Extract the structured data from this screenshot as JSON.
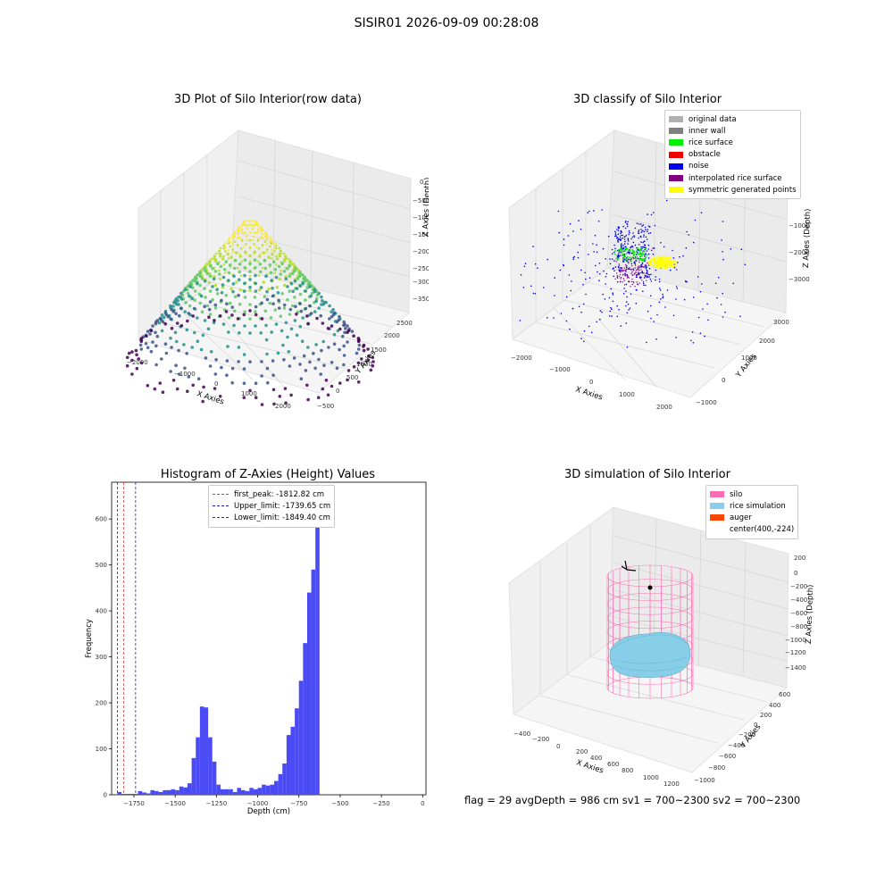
{
  "suptitle": "SISIR01 2026-09-09 00:28:08",
  "footer": "flag = 29  avgDepth = 986 cm  sv1 = 700~2300  sv2 = 700~2300",
  "colors": {
    "hist_bar": "#4b4bf5",
    "first_peak": "#e03030",
    "limit": "#2020d0",
    "original_data": "#b0b0b0",
    "inner_wall": "#808080",
    "rice_surface": "#00ee00",
    "obstacle": "#ee0000",
    "noise": "#0000ee",
    "interpolated_rice_surface": "#800080",
    "symmetric_generated_points": "#ffff00",
    "silo": "#ff6eb4",
    "rice_simulation": "#87cee8",
    "auger": "#ff4500"
  },
  "chart_data": [
    {
      "type": "scatter",
      "title": "3D Plot of Silo Interior(row data)",
      "xlabel": "X Axies",
      "ylabel": "Y Axies",
      "zlabel": "Z Axies (Depth)",
      "xticks": [
        "−2000",
        "−1000",
        "0",
        "1000",
        "2000"
      ],
      "yticks": [
        "−500",
        "0",
        "500",
        "1000",
        "1500",
        "2000",
        "2500"
      ],
      "zticks": [
        "0",
        "−500",
        "−1000",
        "−1500",
        "−2000",
        "−2500",
        "−3000",
        "−3500"
      ],
      "colormap": "viridis"
    },
    {
      "type": "scatter",
      "title": "3D classify of Silo Interior",
      "xlabel": "X Axies",
      "ylabel": "Y Axies",
      "zlabel": "Z Axies (Depth)",
      "xticks": [
        "−2000",
        "−1000",
        "0",
        "1000",
        "2000"
      ],
      "yticks": [
        "−1000",
        "0",
        "1000",
        "2000",
        "3000"
      ],
      "zticks": [
        "−1000",
        "−2000",
        "−3000"
      ],
      "legend": [
        "original data",
        "inner wall",
        "rice surface",
        "obstacle",
        "noise",
        "interpolated rice surface",
        "symmetric generated points"
      ],
      "legend_placement": "top-right"
    },
    {
      "type": "bar",
      "title": "Histogram of Z-Axies (Height) Values",
      "xlabel": "Depth (cm)",
      "ylabel": "Frequency",
      "xticks": [
        "−1750",
        "−1500",
        "−1250",
        "−1000",
        "−750",
        "−500",
        "−250",
        "0"
      ],
      "yticks": [
        "0",
        "100",
        "200",
        "300",
        "400",
        "500",
        "600"
      ],
      "xlim": [
        -1885,
        0
      ],
      "ylim": [
        0,
        680
      ],
      "bin_width": 25,
      "bin_start": -1875,
      "values": [
        0,
        6,
        2,
        2,
        2,
        2,
        8,
        5,
        3,
        10,
        8,
        6,
        10,
        10,
        12,
        10,
        18,
        16,
        25,
        80,
        125,
        192,
        190,
        125,
        72,
        22,
        12,
        12,
        12,
        6,
        15,
        10,
        8,
        15,
        12,
        15,
        22,
        20,
        22,
        30,
        45,
        68,
        130,
        148,
        188,
        248,
        330,
        440,
        490,
        648
      ],
      "lines": [
        {
          "label": "first_peak: -1812.82 cm",
          "x": -1812.82,
          "color": "#e03030"
        },
        {
          "label": "Upper_limit: -1739.65 cm",
          "x": -1739.65,
          "color": "#2020d0"
        },
        {
          "label": "Lower_limit: -1849.40 cm",
          "x": -1849.4,
          "color": "#2020d0"
        }
      ],
      "legend_placement": "top-center"
    },
    {
      "type": "scatter",
      "title": "3D simulation of Silo Interior",
      "xlabel": "X Axies",
      "ylabel": "Y Axies",
      "zlabel": "Z Axies (Depth)",
      "xticks": [
        "−400",
        "−200",
        "0",
        "200",
        "400",
        "600",
        "800",
        "1000",
        "1200"
      ],
      "yticks": [
        "600",
        "400",
        "200",
        "0",
        "−200",
        "−400",
        "−600",
        "−800",
        "−1000"
      ],
      "zticks": [
        "200",
        "0",
        "−200",
        "−400",
        "−600",
        "−800",
        "−1000",
        "−1200",
        "−1400"
      ],
      "legend": [
        "silo",
        "rice simulation",
        "auger",
        "center(400,-224)"
      ],
      "legend_placement": "top-right"
    }
  ]
}
